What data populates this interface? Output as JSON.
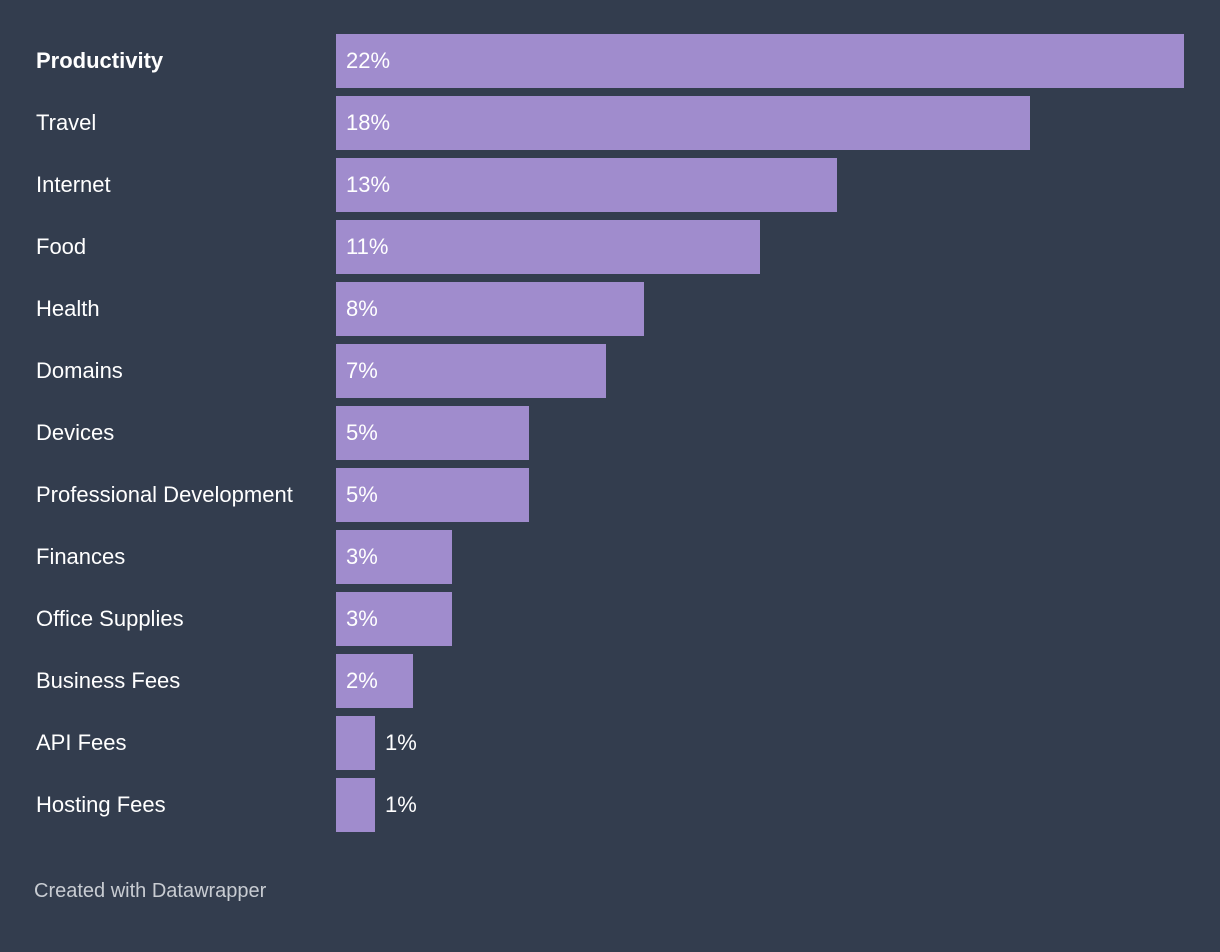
{
  "chart_data": {
    "type": "bar",
    "orientation": "horizontal",
    "categories": [
      "Productivity",
      "Travel",
      "Internet",
      "Food",
      "Health",
      "Domains",
      "Devices",
      "Professional Development",
      "Finances",
      "Office Supplies",
      "Business Fees",
      "API Fees",
      "Hosting Fees"
    ],
    "values": [
      22,
      18,
      13,
      11,
      8,
      7,
      5,
      5,
      3,
      3,
      2,
      1,
      1
    ],
    "value_labels": [
      "22%",
      "18%",
      "13%",
      "11%",
      "8%",
      "7%",
      "5%",
      "5%",
      "3%",
      "3%",
      "2%",
      "1%",
      "1%"
    ],
    "highlighted_category": "Productivity",
    "xlim": [
      0,
      22
    ],
    "bar_color": "#a08ccd",
    "title": "",
    "xlabel": "",
    "ylabel": ""
  },
  "footer": {
    "credit": "Created with Datawrapper"
  },
  "colors": {
    "background": "#333d4e",
    "bar": "#a08ccd",
    "text": "#ffffff",
    "footer_text": "#c8ccd2"
  }
}
